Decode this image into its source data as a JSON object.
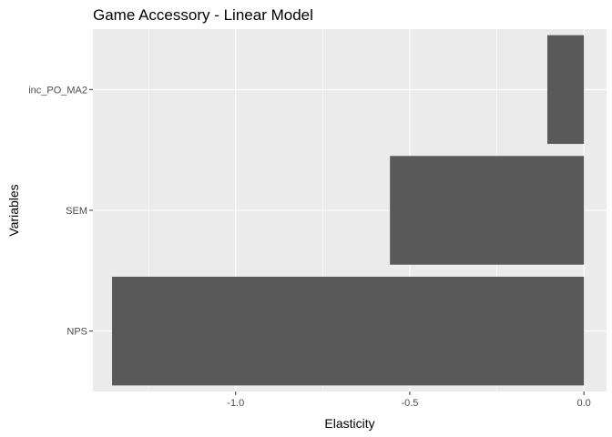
{
  "chart_data": {
    "type": "bar",
    "orientation": "horizontal",
    "title": "Game Accessory - Linear Model",
    "xlabel": "Elasticity",
    "ylabel": "Variables",
    "categories": [
      "NPS",
      "SEM",
      "inc_PO_MA2"
    ],
    "values": [
      -1.355,
      -0.557,
      -0.105
    ],
    "xlim": [
      -1.41,
      0.065
    ],
    "xticks": [
      -1.0,
      -0.5,
      0.0
    ],
    "xtick_labels": [
      "-1.0",
      "-0.5",
      "0.0"
    ],
    "grid": true,
    "colors": {
      "bar": "#595959",
      "panel": "#ebebeb",
      "grid_major": "#ffffff",
      "tick_text": "#4d4d4d",
      "tick_mark": "#333333"
    }
  }
}
